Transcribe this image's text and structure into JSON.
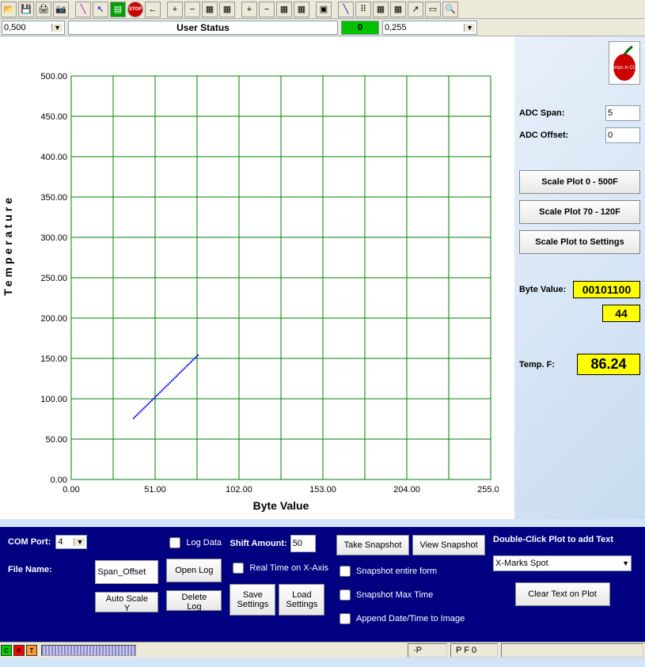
{
  "toolbar": {
    "combo1": "0,500",
    "status_label": "User Status",
    "status_value": "0",
    "combo2": "0,255"
  },
  "chart": {
    "type": "scatter-line",
    "xlabel": "Byte Value",
    "ylabel": "Temperature",
    "xlim": [
      0,
      255
    ],
    "ylim": [
      0,
      500
    ],
    "xticks": [
      0,
      51,
      102,
      153,
      204,
      255
    ],
    "xtick_labels": [
      "0.00",
      "51.00",
      "102.00",
      "153.00",
      "204.00",
      "255.00"
    ],
    "yticks": [
      0,
      50,
      100,
      150,
      200,
      250,
      300,
      350,
      400,
      450,
      500
    ],
    "ytick_labels": [
      "0.00",
      "50.00",
      "100.00",
      "150.00",
      "200.00",
      "250.00",
      "300.00",
      "350.00",
      "400.00",
      "450.00",
      "500.00"
    ],
    "xgrid_step": 25.5,
    "ygrid_step": 50,
    "grid_color": "#008000",
    "background_color": "#ffffff",
    "axis_color": "#000000",
    "tick_fontsize": 11,
    "label_fontsize": 14,
    "series": {
      "color": "#0000ff",
      "marker_size": 2,
      "points": [
        [
          38,
          76
        ],
        [
          39,
          78
        ],
        [
          40,
          80
        ],
        [
          41,
          82
        ],
        [
          42,
          84
        ],
        [
          43,
          86
        ],
        [
          44,
          88
        ],
        [
          45,
          90
        ],
        [
          46,
          92
        ],
        [
          47,
          94
        ],
        [
          48,
          96
        ],
        [
          49,
          98
        ],
        [
          50,
          100
        ],
        [
          51,
          102
        ],
        [
          52,
          104
        ],
        [
          53,
          106
        ],
        [
          54,
          108
        ],
        [
          55,
          110
        ],
        [
          56,
          112
        ],
        [
          57,
          114
        ],
        [
          58,
          116
        ],
        [
          59,
          118
        ],
        [
          60,
          120
        ],
        [
          61,
          122
        ],
        [
          62,
          124
        ],
        [
          63,
          126
        ],
        [
          64,
          128
        ],
        [
          65,
          130
        ],
        [
          66,
          132
        ],
        [
          67,
          134
        ],
        [
          68,
          136
        ],
        [
          69,
          138
        ],
        [
          70,
          140
        ],
        [
          71,
          142
        ],
        [
          72,
          144
        ],
        [
          73,
          146
        ],
        [
          74,
          148
        ],
        [
          75,
          150
        ],
        [
          76,
          152
        ],
        [
          77,
          154
        ]
      ]
    }
  },
  "right": {
    "logo_label": "Stamps in Class",
    "adc_span_label": "ADC Span:",
    "adc_span": "5",
    "adc_offset_label": "ADC Offset:",
    "adc_offset": "0",
    "btn1": "Scale Plot 0 - 500F",
    "btn2": "Scale Plot 70 - 120F",
    "btn3": "Scale Plot to Settings",
    "byte_value_label": "Byte Value:",
    "byte_binary": "00101100",
    "byte_dec": "44",
    "temp_label": "Temp. F:",
    "temp_value": "86.24"
  },
  "bottom": {
    "com_port_label": "COM Port:",
    "com_port": "4",
    "file_name_label": "File Name:",
    "file_name": "Span_Offset",
    "log_data_label": "Log Data",
    "auto_scale_y": "Auto Scale Y",
    "open_log": "Open Log",
    "delete_log": "Delete Log",
    "shift_amount_label": "Shift Amount:",
    "shift_amount": "50",
    "real_time_label": "Real Time on X-Axis",
    "save_settings": "Save Settings",
    "load_settings": "Load Settings",
    "take_snapshot": "Take Snapshot",
    "view_snapshot": "View Snapshot",
    "snap_form_label": "Snapshot entire form",
    "snap_max_label": "Snapshot Max Time",
    "append_date_label": "Append Date/Time to Image",
    "dbl_click_label": "Double-Click Plot to add Text",
    "xmarks": "X-Marks Spot",
    "clear_text": "Clear Text on Plot"
  },
  "statusbar": {
    "led_c": "C",
    "led_c_color": "#00d000",
    "led_r": "R",
    "led_r_color": "#ff0000",
    "led_t": "T",
    "led_t_color": "#ff9933",
    "cell1": "·P",
    "cell2": "P F 0"
  }
}
